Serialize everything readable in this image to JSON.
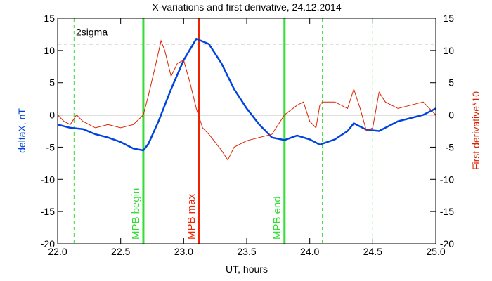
{
  "chart_data": {
    "type": "line",
    "title": "X-variations and first derivative, 24.12.2014",
    "xlabel": "UT, hours",
    "ylabel": "deltaX, nT",
    "y2label": "First derivative*10",
    "xlim": [
      22,
      25
    ],
    "xticks": [
      {
        "value": 22,
        "label": "22.0"
      },
      {
        "value": 22.5,
        "label": "22.5"
      },
      {
        "value": 23,
        "label": "23.0"
      },
      {
        "value": 23.5,
        "label": "23.5"
      },
      {
        "value": 24,
        "label": "24.0"
      },
      {
        "value": 24.5,
        "label": "24.5"
      },
      {
        "value": 25,
        "label": "25.0"
      }
    ],
    "ylim": [
      -20,
      15
    ],
    "yticks": [
      15,
      10,
      5,
      0,
      -5,
      -10,
      -15,
      -20
    ],
    "y2lim": [
      -20,
      15
    ],
    "y2ticks": [
      15,
      10,
      5,
      0,
      -5,
      -10,
      -15,
      -20
    ],
    "series": [
      {
        "name": "deltaX, nT",
        "color": "#0044dd",
        "axis": "y",
        "x": [
          22.0,
          22.1,
          22.2,
          22.3,
          22.4,
          22.5,
          22.6,
          22.68,
          22.72,
          22.8,
          22.9,
          23.0,
          23.1,
          23.2,
          23.3,
          23.4,
          23.5,
          23.6,
          23.7,
          23.8,
          23.9,
          24.0,
          24.08,
          24.2,
          24.3,
          24.35,
          24.45,
          24.55,
          24.7,
          24.9,
          25.0
        ],
        "values": [
          -1.5,
          -2,
          -2.2,
          -3,
          -3.5,
          -4.2,
          -5.2,
          -5.5,
          -4.5,
          -1,
          4,
          8.5,
          11.8,
          11,
          8,
          4,
          1,
          -1.5,
          -3.5,
          -3.9,
          -3.2,
          -3.8,
          -4.6,
          -3.8,
          -2.5,
          -1.3,
          -2.3,
          -2.5,
          -1,
          0,
          1
        ]
      },
      {
        "name": "First derivative*10",
        "color": "#dd2200",
        "axis": "y2",
        "x": [
          22.0,
          22.05,
          22.1,
          22.15,
          22.2,
          22.3,
          22.4,
          22.5,
          22.6,
          22.68,
          22.72,
          22.78,
          22.82,
          22.85,
          22.9,
          22.95,
          23.0,
          23.05,
          23.1,
          23.15,
          23.2,
          23.3,
          23.35,
          23.4,
          23.5,
          23.6,
          23.7,
          23.8,
          23.9,
          23.95,
          24.0,
          24.05,
          24.08,
          24.1,
          24.2,
          24.3,
          24.35,
          24.4,
          24.45,
          24.5,
          24.55,
          24.6,
          24.7,
          24.8,
          24.9,
          24.95,
          25.0
        ],
        "values": [
          0,
          -1,
          -1.5,
          0,
          -1,
          -2,
          -1.5,
          -2,
          -1.5,
          0,
          3,
          8,
          11.5,
          10,
          6,
          8,
          8.5,
          5,
          1,
          -2,
          -3,
          -5.5,
          -7,
          -5,
          -4,
          -3.5,
          -3,
          0,
          1.5,
          2,
          -1,
          -2,
          1.5,
          2,
          2,
          1,
          4,
          1,
          -2.5,
          -2,
          3.5,
          2,
          1,
          1.5,
          2,
          1,
          0
        ]
      }
    ],
    "vlines": [
      {
        "x": 22.13,
        "color": "#33dd33",
        "style": "dashed"
      },
      {
        "x": 22.68,
        "color": "#33dd33",
        "style": "solid",
        "label": "MPB begin"
      },
      {
        "x": 23.12,
        "color": "#ee2200",
        "style": "solid",
        "label": "MPB max"
      },
      {
        "x": 23.8,
        "color": "#33dd33",
        "style": "solid",
        "label": "MPB end"
      },
      {
        "x": 24.1,
        "color": "#33dd33",
        "style": "dashed"
      },
      {
        "x": 24.5,
        "color": "#33dd33",
        "style": "dashed"
      }
    ],
    "hlines": [
      {
        "y": 11,
        "color": "#000000",
        "style": "dashed",
        "label": "2sigma"
      },
      {
        "y": 0,
        "color": "#000000",
        "style": "solid"
      }
    ]
  }
}
